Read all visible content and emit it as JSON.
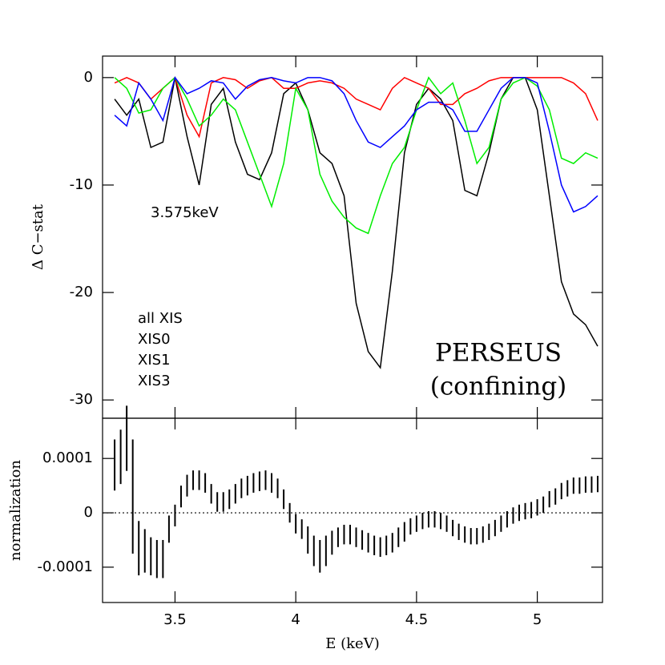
{
  "chart_data": [
    {
      "type": "line",
      "ylabel": "Δ C−stat",
      "annotations": [
        "3.575keV",
        "PERSEUS",
        "(confining)"
      ],
      "x": [
        3.25,
        3.3,
        3.35,
        3.4,
        3.45,
        3.5,
        3.55,
        3.6,
        3.65,
        3.7,
        3.75,
        3.8,
        3.85,
        3.9,
        3.95,
        4,
        4.05,
        4.1,
        4.15,
        4.2,
        4.25,
        4.3,
        4.35,
        4.4,
        4.45,
        4.5,
        4.55,
        4.6,
        4.65,
        4.7,
        4.75,
        4.8,
        4.85,
        4.9,
        4.95,
        5,
        5.05,
        5.1,
        5.15,
        5.2,
        5.25
      ],
      "series": [
        {
          "name": "all XIS",
          "color": "#000000",
          "values": [
            -2,
            -3.5,
            -2,
            -6.5,
            -6,
            0,
            -5.5,
            -10,
            -2.5,
            -1,
            -6,
            -9,
            -9.5,
            -7,
            -1.5,
            -0.5,
            -3,
            -7,
            -8,
            -11,
            -21,
            -25.5,
            -27,
            -18,
            -7,
            -2.5,
            -1,
            -2,
            -4,
            -10.5,
            -11,
            -7,
            -2,
            0,
            0,
            -3,
            -11,
            -19,
            -22,
            -23,
            -25
          ]
        },
        {
          "name": "XIS0",
          "color": "#ff0000",
          "values": [
            -0.5,
            0,
            -0.5,
            -2,
            -1,
            0,
            -3.5,
            -5.5,
            -0.5,
            0,
            -0.2,
            -1,
            -0.3,
            0,
            -1,
            -1,
            -0.5,
            -0.3,
            -0.5,
            -1,
            -2,
            -2.5,
            -3,
            -1,
            0,
            -0.5,
            -1,
            -2.5,
            -2.5,
            -1.5,
            -1,
            -0.3,
            0,
            0,
            0,
            0,
            0,
            0,
            -0.5,
            -1.5,
            -4
          ]
        },
        {
          "name": "XIS1",
          "color": "#00ee00",
          "values": [
            0,
            -1,
            -3.3,
            -3,
            -1,
            0,
            -2,
            -4.5,
            -3.5,
            -2,
            -3,
            -6,
            -9,
            -12,
            -8,
            -1,
            -3,
            -9,
            -11.5,
            -13,
            -14,
            -14.5,
            -11,
            -8,
            -6.5,
            -3,
            0,
            -1.5,
            -0.5,
            -4,
            -8,
            -6.5,
            -2,
            -0.5,
            0,
            -0.8,
            -3,
            -7.5,
            -8,
            -7,
            -7.5
          ]
        },
        {
          "name": "XIS3",
          "color": "#0000ff",
          "values": [
            -3.5,
            -4.5,
            -0.5,
            -2,
            -4,
            0,
            -1.5,
            -1,
            -0.3,
            -0.5,
            -2,
            -0.8,
            -0.2,
            0,
            -0.3,
            -0.5,
            0,
            0,
            -0.3,
            -1.5,
            -4,
            -6,
            -6.5,
            -5.5,
            -4.5,
            -3,
            -2.3,
            -2.3,
            -3,
            -5,
            -5,
            -3,
            -1,
            0,
            0,
            -0.5,
            -5,
            -10,
            -12.5,
            -12,
            -11
          ]
        }
      ],
      "xlim": [
        3.2,
        5.27
      ],
      "xticks": [
        3.5,
        4,
        4.5,
        5
      ],
      "ylim": [
        -31.7,
        2
      ],
      "yticks": [
        -30,
        -20,
        -10,
        0
      ]
    },
    {
      "type": "errorbar",
      "ylabel": "normalization",
      "xlabel": "E (keV)",
      "zero_line": true,
      "x": [
        3.25,
        3.275,
        3.3,
        3.325,
        3.35,
        3.375,
        3.4,
        3.425,
        3.45,
        3.475,
        3.5,
        3.525,
        3.55,
        3.575,
        3.6,
        3.625,
        3.65,
        3.675,
        3.7,
        3.725,
        3.75,
        3.775,
        3.8,
        3.825,
        3.85,
        3.875,
        3.9,
        3.925,
        3.95,
        3.975,
        4,
        4.025,
        4.05,
        4.075,
        4.1,
        4.125,
        4.15,
        4.175,
        4.2,
        4.225,
        4.25,
        4.275,
        4.3,
        4.325,
        4.35,
        4.375,
        4.4,
        4.425,
        4.45,
        4.475,
        4.5,
        4.525,
        4.55,
        4.575,
        4.6,
        4.625,
        4.65,
        4.675,
        4.7,
        4.725,
        4.75,
        4.775,
        4.8,
        4.825,
        4.85,
        4.875,
        4.9,
        4.925,
        4.95,
        4.975,
        5,
        5.025,
        5.05,
        5.075,
        5.1,
        5.125,
        5.15,
        5.175,
        5.2,
        5.225,
        5.25
      ],
      "values": [
        8.8e-05,
        0.000103,
        0.000137,
        3e-05,
        -6.5e-05,
        -7e-05,
        -8e-05,
        -8.5e-05,
        -8.5e-05,
        -3e-05,
        -5e-06,
        3e-05,
        5e-05,
        6e-05,
        6e-05,
        5.5e-05,
        3.5e-05,
        2e-05,
        2e-05,
        2.5e-05,
        3.5e-05,
        4.5e-05,
        5e-05,
        5.5e-05,
        5.8e-05,
        6e-05,
        5.5e-05,
        4.5e-05,
        2.5e-05,
        0,
        -2e-05,
        -3e-05,
        -5e-05,
        -7e-05,
        -8e-05,
        -7e-05,
        -5.5e-05,
        -4.5e-05,
        -4e-05,
        -4e-05,
        -4.5e-05,
        -5e-05,
        -5.5e-05,
        -6e-05,
        -6.3e-05,
        -6e-05,
        -5.5e-05,
        -4.5e-05,
        -3.5e-05,
        -2.5e-05,
        -2e-05,
        -1.5e-05,
        -1.2e-05,
        -1.2e-05,
        -1.5e-05,
        -2e-05,
        -2.8e-05,
        -3.5e-05,
        -4e-05,
        -4.3e-05,
        -4.3e-05,
        -4e-05,
        -3.5e-05,
        -2.8e-05,
        -2e-05,
        -1.2e-05,
        -5e-06,
        0,
        3e-06,
        5e-06,
        1e-05,
        1.5e-05,
        2.5e-05,
        3e-05,
        4e-05,
        4.5e-05,
        5e-05,
        5e-05,
        5.2e-05,
        5.2e-05,
        5.3e-05
      ],
      "errors": [
        4.7e-05,
        5e-05,
        6e-05,
        0.000105,
        5e-05,
        4e-05,
        3.5e-05,
        3.5e-05,
        3.5e-05,
        2.5e-05,
        2e-05,
        2e-05,
        2e-05,
        1.8e-05,
        1.8e-05,
        1.8e-05,
        1.8e-05,
        1.8e-05,
        1.8e-05,
        1.8e-05,
        1.8e-05,
        1.8e-05,
        1.8e-05,
        1.8e-05,
        1.8e-05,
        1.8e-05,
        1.8e-05,
        1.8e-05,
        1.8e-05,
        1.8e-05,
        1.8e-05,
        1.8e-05,
        2.5e-05,
        2.8e-05,
        3e-05,
        2.8e-05,
        2.2e-05,
        1.8e-05,
        1.8e-05,
        1.8e-05,
        1.8e-05,
        1.8e-05,
        1.8e-05,
        1.8e-05,
        1.8e-05,
        1.8e-05,
        1.8e-05,
        1.8e-05,
        1.8e-05,
        1.5e-05,
        1.5e-05,
        1.5e-05,
        1.5e-05,
        1.5e-05,
        1.5e-05,
        1.5e-05,
        1.5e-05,
        1.5e-05,
        1.5e-05,
        1.5e-05,
        1.5e-05,
        1.5e-05,
        1.5e-05,
        1.5e-05,
        1.5e-05,
        1.5e-05,
        1.5e-05,
        1.5e-05,
        1.5e-05,
        1.5e-05,
        1.5e-05,
        1.5e-05,
        1.5e-05,
        1.5e-05,
        1.5e-05,
        1.5e-05,
        1.5e-05,
        1.5e-05,
        1.5e-05,
        1.5e-05,
        1.5e-05
      ],
      "color": "#000000",
      "xlim": [
        3.2,
        5.27
      ],
      "xticks": [
        3.5,
        4,
        4.5,
        5
      ],
      "ylim": [
        -0.000165,
        0.000174
      ],
      "yticks": [
        -0.0001,
        0,
        0.0001
      ]
    }
  ]
}
